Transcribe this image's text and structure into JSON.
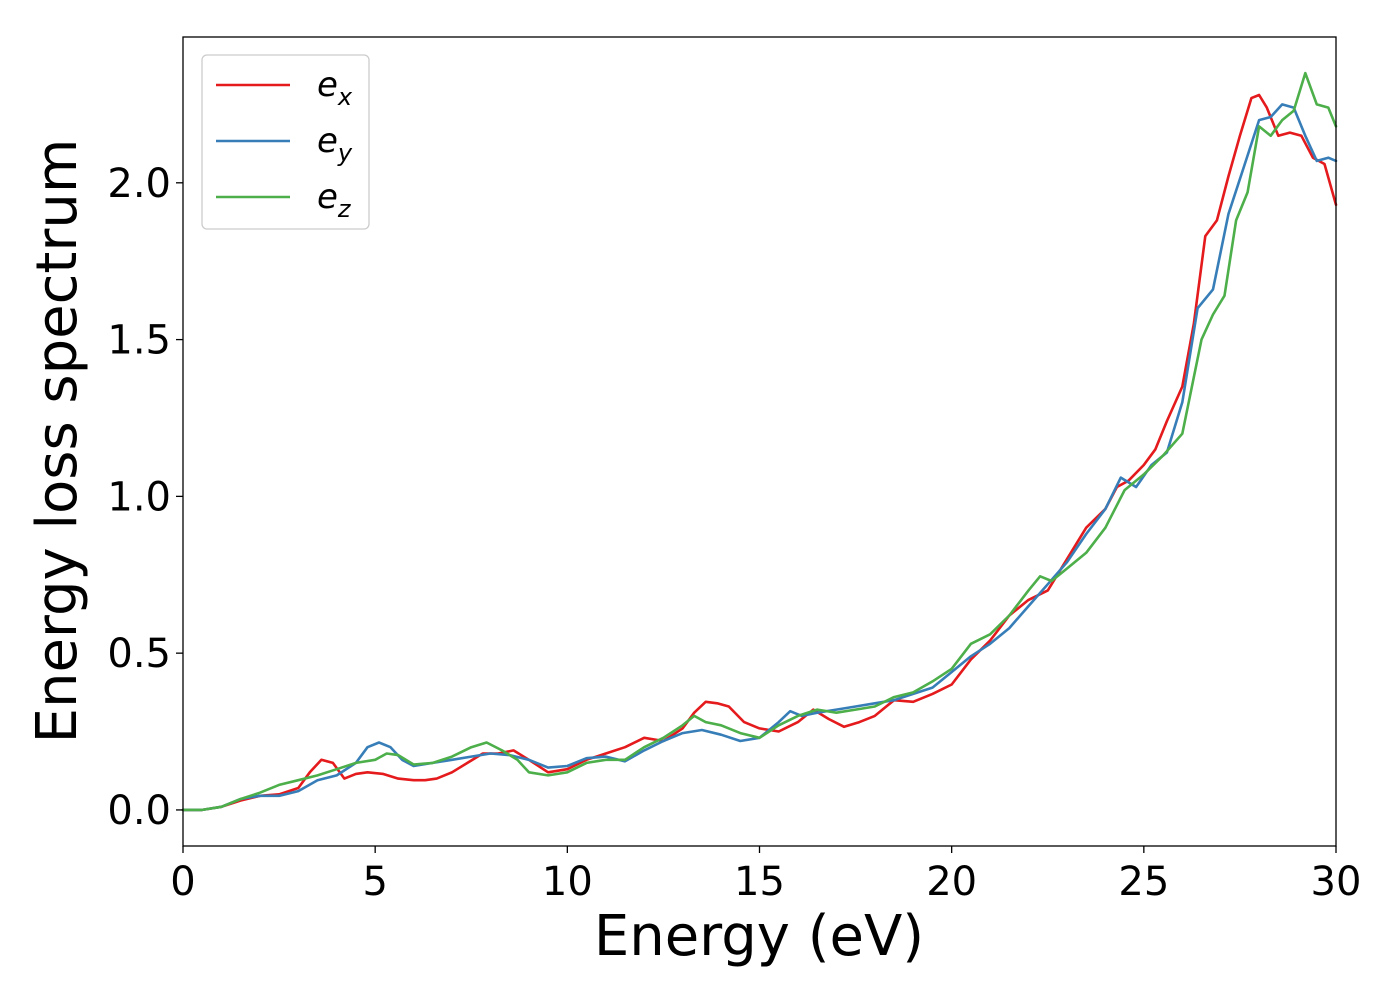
{
  "chart_data": {
    "type": "line",
    "title": "",
    "xlabel": "Energy (eV)",
    "ylabel": "Energy loss spectrum",
    "xlim": [
      0,
      30
    ],
    "ylim": [
      -0.115,
      2.465
    ],
    "xticks": [
      "0",
      "5",
      "10",
      "15",
      "20",
      "25",
      "30"
    ],
    "yticks": [
      "0.0",
      "0.5",
      "1.0",
      "1.5",
      "2.0"
    ],
    "grid": false,
    "legend_position": "top-left",
    "series": [
      {
        "name": "e_x",
        "label_main": "e",
        "label_sub": "x",
        "color": "#e41a1c",
        "x": [
          0,
          0.5,
          1,
          1.5,
          2,
          2.5,
          3,
          3.3,
          3.6,
          3.9,
          4.2,
          4.5,
          4.8,
          5.2,
          5.6,
          6,
          6.3,
          6.6,
          7,
          7.4,
          7.8,
          8.2,
          8.6,
          9,
          9.5,
          10,
          10.5,
          11,
          11.5,
          12,
          12.5,
          13,
          13.3,
          13.6,
          13.9,
          14.2,
          14.6,
          15,
          15.5,
          16,
          16.4,
          16.8,
          17.2,
          17.6,
          18,
          18.5,
          19,
          19.5,
          20,
          20.5,
          21,
          21.5,
          22,
          22.5,
          23,
          23.5,
          24,
          24.3,
          24.6,
          25,
          25.3,
          25.6,
          26,
          26.3,
          26.6,
          26.9,
          27.2,
          27.5,
          27.8,
          28,
          28.2,
          28.5,
          28.8,
          29.1,
          29.4,
          29.7,
          30
        ],
        "y": [
          0.0,
          0.0,
          0.01,
          0.03,
          0.045,
          0.05,
          0.07,
          0.12,
          0.16,
          0.15,
          0.1,
          0.115,
          0.12,
          0.115,
          0.1,
          0.095,
          0.095,
          0.1,
          0.12,
          0.15,
          0.18,
          0.18,
          0.19,
          0.16,
          0.12,
          0.13,
          0.16,
          0.18,
          0.2,
          0.23,
          0.22,
          0.26,
          0.31,
          0.345,
          0.34,
          0.33,
          0.28,
          0.26,
          0.25,
          0.28,
          0.32,
          0.29,
          0.265,
          0.28,
          0.3,
          0.35,
          0.345,
          0.37,
          0.4,
          0.48,
          0.54,
          0.62,
          0.67,
          0.7,
          0.8,
          0.9,
          0.96,
          1.03,
          1.05,
          1.1,
          1.15,
          1.24,
          1.35,
          1.55,
          1.83,
          1.88,
          2.02,
          2.15,
          2.27,
          2.28,
          2.24,
          2.15,
          2.16,
          2.15,
          2.08,
          2.06,
          1.93
        ]
      },
      {
        "name": "e_y",
        "label_main": "e",
        "label_sub": "y",
        "color": "#377eb8",
        "x": [
          0,
          0.5,
          1,
          1.5,
          2,
          2.5,
          3,
          3.5,
          4,
          4.5,
          4.8,
          5.1,
          5.4,
          5.7,
          6,
          6.5,
          7,
          7.5,
          8,
          8.5,
          9,
          9.5,
          10,
          10.5,
          11,
          11.5,
          12,
          12.5,
          13,
          13.5,
          14,
          14.5,
          15,
          15.5,
          15.8,
          16.1,
          16.5,
          17,
          17.5,
          18,
          18.5,
          19,
          19.5,
          20,
          20.5,
          21,
          21.5,
          22,
          22.5,
          23,
          23.5,
          24,
          24.4,
          24.8,
          25.2,
          25.6,
          26,
          26.4,
          26.8,
          27.2,
          27.6,
          28,
          28.3,
          28.6,
          28.9,
          29.2,
          29.5,
          29.8,
          30
        ],
        "y": [
          0.0,
          0.0,
          0.01,
          0.035,
          0.045,
          0.045,
          0.06,
          0.095,
          0.11,
          0.15,
          0.2,
          0.215,
          0.2,
          0.16,
          0.14,
          0.15,
          0.16,
          0.17,
          0.18,
          0.175,
          0.16,
          0.135,
          0.14,
          0.165,
          0.17,
          0.155,
          0.19,
          0.22,
          0.245,
          0.255,
          0.24,
          0.22,
          0.23,
          0.28,
          0.315,
          0.3,
          0.31,
          0.32,
          0.33,
          0.34,
          0.35,
          0.37,
          0.39,
          0.44,
          0.49,
          0.53,
          0.58,
          0.65,
          0.72,
          0.79,
          0.88,
          0.96,
          1.06,
          1.03,
          1.1,
          1.14,
          1.3,
          1.6,
          1.66,
          1.9,
          2.05,
          2.2,
          2.21,
          2.25,
          2.24,
          2.15,
          2.07,
          2.08,
          2.07
        ]
      },
      {
        "name": "e_z",
        "label_main": "e",
        "label_sub": "z",
        "color": "#4daf4a",
        "x": [
          0,
          0.5,
          1,
          1.5,
          2,
          2.5,
          3,
          3.5,
          4,
          4.5,
          5,
          5.3,
          5.6,
          6,
          6.5,
          7,
          7.5,
          7.9,
          8.3,
          8.7,
          9,
          9.5,
          10,
          10.5,
          11,
          11.5,
          12,
          12.5,
          13,
          13.3,
          13.6,
          14,
          14.5,
          15,
          15.5,
          16,
          16.5,
          17,
          17.5,
          18,
          18.5,
          19,
          19.5,
          20,
          20.5,
          21,
          21.5,
          22,
          22.3,
          22.6,
          23,
          23.5,
          24,
          24.5,
          25,
          25.5,
          26,
          26.5,
          26.8,
          27.1,
          27.4,
          27.7,
          28,
          28.3,
          28.6,
          28.9,
          29.2,
          29.5,
          29.8,
          30
        ],
        "y": [
          0.0,
          0.0,
          0.01,
          0.035,
          0.055,
          0.08,
          0.095,
          0.11,
          0.13,
          0.15,
          0.16,
          0.18,
          0.175,
          0.145,
          0.15,
          0.17,
          0.2,
          0.215,
          0.19,
          0.16,
          0.12,
          0.11,
          0.12,
          0.15,
          0.16,
          0.16,
          0.2,
          0.23,
          0.27,
          0.3,
          0.28,
          0.27,
          0.245,
          0.23,
          0.27,
          0.3,
          0.32,
          0.31,
          0.32,
          0.33,
          0.36,
          0.375,
          0.41,
          0.45,
          0.53,
          0.56,
          0.62,
          0.7,
          0.745,
          0.73,
          0.77,
          0.82,
          0.9,
          1.02,
          1.07,
          1.13,
          1.2,
          1.5,
          1.58,
          1.64,
          1.88,
          1.97,
          2.18,
          2.15,
          2.2,
          2.23,
          2.35,
          2.25,
          2.24,
          2.18
        ]
      }
    ]
  }
}
